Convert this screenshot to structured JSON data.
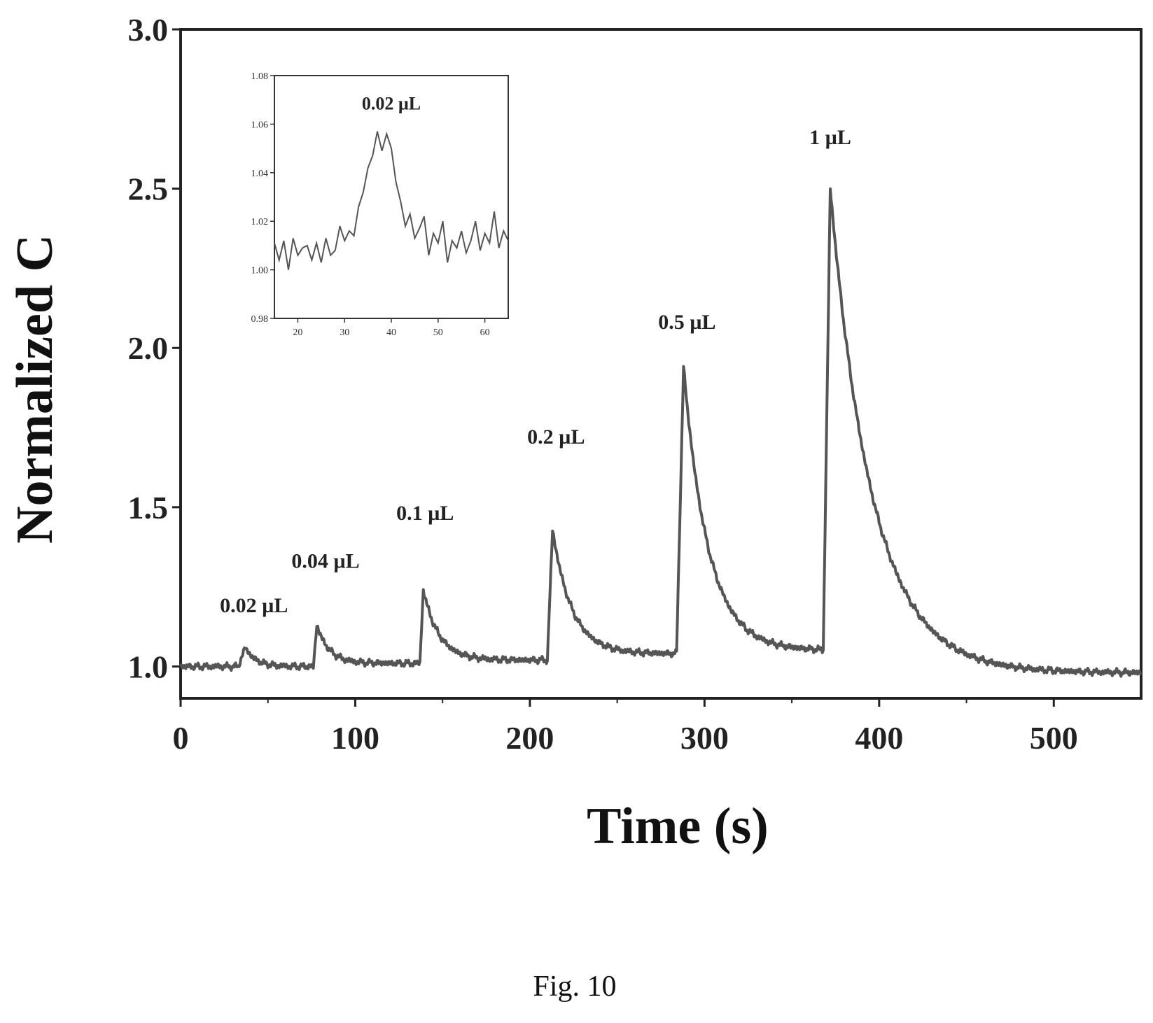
{
  "caption": "Fig. 10",
  "chart_data": [
    {
      "type": "line",
      "xlabel": "Time (s)",
      "ylabel": "Normalized C",
      "xlim": [
        0,
        550
      ],
      "ylim": [
        0.9,
        3.0
      ],
      "xticks": [
        0,
        100,
        200,
        300,
        400,
        500
      ],
      "xtick_labels": [
        "0",
        "100",
        "200",
        "300",
        "400",
        "500"
      ],
      "yticks": [
        1.0,
        1.5,
        2.0,
        2.5,
        3.0
      ],
      "ytick_labels": [
        "1.0",
        "1.5",
        "2.0",
        "2.5",
        "3.0"
      ],
      "line_color": "#555555",
      "grid": false,
      "peaks": [
        {
          "label": "0.02 µL",
          "onset": 33,
          "time": 37,
          "value": 1.06,
          "tail": 1.0,
          "decay": 6,
          "label_x": 42,
          "label_y": 1.17
        },
        {
          "label": "0.04 µL",
          "onset": 76,
          "time": 78,
          "value": 1.13,
          "tail": 1.01,
          "decay": 7,
          "label_x": 83,
          "label_y": 1.31
        },
        {
          "label": "0.1 µL",
          "onset": 137,
          "time": 139,
          "value": 1.24,
          "tail": 1.02,
          "decay": 9,
          "label_x": 140,
          "label_y": 1.46
        },
        {
          "label": "0.2 µL",
          "onset": 210,
          "time": 213,
          "value": 1.43,
          "tail": 1.04,
          "decay": 11,
          "label_x": 215,
          "label_y": 1.7
        },
        {
          "label": "0.5 µL",
          "onset": 284,
          "time": 288,
          "value": 1.94,
          "tail": 1.05,
          "decay": 14,
          "label_x": 290,
          "label_y": 2.06
        },
        {
          "label": "1 µL",
          "onset": 368,
          "time": 372,
          "value": 2.5,
          "tail": 0.98,
          "decay": 24,
          "label_x": 372,
          "label_y": 2.64
        }
      ],
      "baseline": 1.0
    },
    {
      "type": "line",
      "inset": true,
      "xlim": [
        15,
        65
      ],
      "ylim": [
        0.98,
        1.08
      ],
      "xticks": [
        20,
        30,
        40,
        50,
        60
      ],
      "xtick_labels": [
        "20",
        "30",
        "40",
        "50",
        "60"
      ],
      "yticks": [
        0.98,
        1.0,
        1.02,
        1.04,
        1.06,
        1.08
      ],
      "ytick_labels": [
        "0.98",
        "1.00",
        "1.02",
        "1.04",
        "1.06",
        "1.08"
      ],
      "line_color": "#555555",
      "annotation": {
        "label": "0.02 µL",
        "x": 40,
        "y": 1.066
      },
      "x": [
        15,
        16,
        17,
        18,
        19,
        20,
        21,
        22,
        23,
        24,
        25,
        26,
        27,
        28,
        29,
        30,
        31,
        32,
        33,
        34,
        35,
        36,
        37,
        38,
        39,
        40,
        41,
        42,
        43,
        44,
        45,
        46,
        47,
        48,
        49,
        50,
        51,
        52,
        53,
        54,
        55,
        56,
        57,
        58,
        59,
        60,
        61,
        62,
        63,
        64,
        65
      ],
      "y": [
        1.011,
        1.004,
        1.012,
        1.0,
        1.013,
        1.006,
        1.009,
        1.01,
        1.004,
        1.011,
        1.003,
        1.013,
        1.006,
        1.008,
        1.018,
        1.012,
        1.016,
        1.014,
        1.026,
        1.032,
        1.042,
        1.047,
        1.057,
        1.049,
        1.056,
        1.05,
        1.036,
        1.028,
        1.018,
        1.023,
        1.013,
        1.017,
        1.022,
        1.006,
        1.015,
        1.011,
        1.02,
        1.003,
        1.012,
        1.009,
        1.016,
        1.007,
        1.012,
        1.02,
        1.008,
        1.015,
        1.011,
        1.024,
        1.009,
        1.016,
        1.012
      ]
    }
  ]
}
